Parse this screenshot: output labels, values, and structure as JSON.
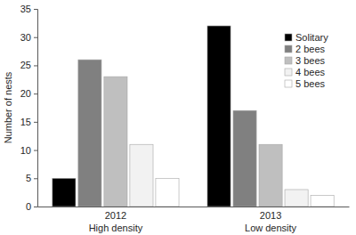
{
  "chart_data": {
    "type": "bar",
    "categories": [
      "2012\nHigh density",
      "2013\nLow density"
    ],
    "series": [
      {
        "name": "Solitary",
        "color": "#000000",
        "values": [
          5,
          32
        ]
      },
      {
        "name": "2 bees",
        "color": "#808080",
        "values": [
          26,
          17
        ]
      },
      {
        "name": "3 bees",
        "color": "#bfbfbf",
        "values": [
          23,
          11
        ]
      },
      {
        "name": "4 bees",
        "color": "#f2f2f2",
        "values": [
          11,
          3
        ]
      },
      {
        "name": "5 bees",
        "color": "#ffffff",
        "values": [
          5,
          2
        ]
      }
    ],
    "y_label": "Number of nests",
    "ylim": [
      0,
      35
    ],
    "yticks": [
      0,
      5,
      10,
      15,
      20,
      25,
      30,
      35
    ],
    "grid": false,
    "legend": "top-right"
  }
}
